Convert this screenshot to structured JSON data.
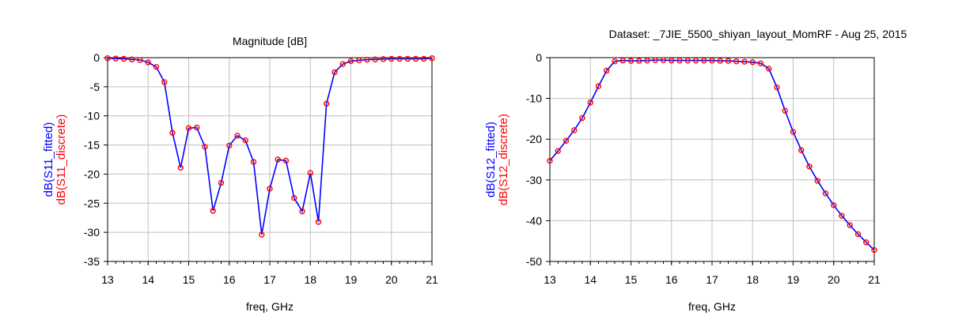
{
  "dataset_title": "Dataset: _7JIE_5500_shiyan_layout_MomRF - Aug 25, 2015",
  "colors": {
    "fitted": "#0000ff",
    "discrete": "#ff0000",
    "grid": "#c0c0c0",
    "frame": "#000000"
  },
  "chart_data": [
    {
      "type": "line",
      "title": "Magnitude [dB]",
      "xlabel": "freq, GHz",
      "ylabel_fitted": "dB(S11_fitted)",
      "ylabel_discrete": "dB(S11_discrete)",
      "xlim": [
        13,
        21
      ],
      "ylim": [
        -35,
        0
      ],
      "xticks": [
        "13",
        "14",
        "15",
        "16",
        "17",
        "18",
        "19",
        "20",
        "21"
      ],
      "yticks": [
        "0",
        "-5",
        "-10",
        "-15",
        "-20",
        "-25",
        "-30",
        "-35"
      ],
      "grid": true,
      "x": [
        13.0,
        13.2,
        13.4,
        13.6,
        13.8,
        14.0,
        14.2,
        14.4,
        14.6,
        14.8,
        15.0,
        15.2,
        15.4,
        15.6,
        15.8,
        16.0,
        16.2,
        16.4,
        16.6,
        16.8,
        17.0,
        17.2,
        17.4,
        17.6,
        17.8,
        18.0,
        18.2,
        18.4,
        18.6,
        18.8,
        19.0,
        19.2,
        19.4,
        19.6,
        19.8,
        20.0,
        20.2,
        20.4,
        20.6,
        20.8,
        21.0
      ],
      "series": [
        {
          "name": "dB(S11_fitted)",
          "values": [
            -0.1,
            -0.15,
            -0.2,
            -0.3,
            -0.4,
            -0.8,
            -1.6,
            -4.2,
            -12.9,
            -18.9,
            -12.1,
            -12.0,
            -15.3,
            -26.3,
            -21.5,
            -15.1,
            -13.4,
            -14.2,
            -17.9,
            -30.4,
            -22.5,
            -17.5,
            -17.7,
            -24.1,
            -26.4,
            -19.8,
            -28.2,
            -7.9,
            -2.5,
            -1.1,
            -0.6,
            -0.45,
            -0.35,
            -0.3,
            -0.25,
            -0.2,
            -0.2,
            -0.2,
            -0.2,
            -0.2,
            -0.1
          ]
        },
        {
          "name": "dB(S11_discrete)",
          "values": [
            -0.1,
            -0.15,
            -0.2,
            -0.3,
            -0.4,
            -0.8,
            -1.6,
            -4.2,
            -12.9,
            -18.9,
            -12.1,
            -12.0,
            -15.3,
            -26.3,
            -21.5,
            -15.1,
            -13.4,
            -14.2,
            -17.9,
            -30.4,
            -22.5,
            -17.5,
            -17.7,
            -24.1,
            -26.4,
            -19.8,
            -28.2,
            -7.9,
            -2.5,
            -1.1,
            -0.6,
            -0.45,
            -0.35,
            -0.3,
            -0.25,
            -0.2,
            -0.2,
            -0.2,
            -0.2,
            -0.2,
            -0.1
          ]
        }
      ]
    },
    {
      "type": "line",
      "title": "",
      "xlabel": "freq, GHz",
      "ylabel_fitted": "dB(S12_fitted)",
      "ylabel_discrete": "dB(S12_discrete)",
      "xlim": [
        13,
        21
      ],
      "ylim": [
        -50,
        0
      ],
      "xticks": [
        "13",
        "14",
        "15",
        "16",
        "17",
        "18",
        "19",
        "20",
        "21"
      ],
      "yticks": [
        "0",
        "-10",
        "-20",
        "-30",
        "-40",
        "-50"
      ],
      "grid": true,
      "x": [
        13.0,
        13.2,
        13.4,
        13.6,
        13.8,
        14.0,
        14.2,
        14.4,
        14.6,
        14.8,
        15.0,
        15.2,
        15.4,
        15.6,
        15.8,
        16.0,
        16.2,
        16.4,
        16.6,
        16.8,
        17.0,
        17.2,
        17.4,
        17.6,
        17.8,
        18.0,
        18.2,
        18.4,
        18.6,
        18.8,
        19.0,
        19.2,
        19.4,
        19.6,
        19.8,
        20.0,
        20.2,
        20.4,
        20.6,
        20.8,
        21.0
      ],
      "series": [
        {
          "name": "dB(S12_fitted)",
          "values": [
            -25.3,
            -22.9,
            -20.4,
            -17.8,
            -14.8,
            -11.0,
            -7.0,
            -3.2,
            -0.9,
            -0.7,
            -0.8,
            -0.8,
            -0.7,
            -0.6,
            -0.6,
            -0.7,
            -0.7,
            -0.7,
            -0.7,
            -0.7,
            -0.7,
            -0.8,
            -0.8,
            -0.9,
            -1.0,
            -1.1,
            -1.4,
            -2.7,
            -7.3,
            -13.0,
            -18.2,
            -22.7,
            -26.7,
            -30.2,
            -33.3,
            -36.2,
            -38.8,
            -41.1,
            -43.3,
            -45.3,
            -47.2
          ]
        },
        {
          "name": "dB(S12_discrete)",
          "values": [
            -25.3,
            -22.9,
            -20.4,
            -17.8,
            -14.8,
            -11.0,
            -7.0,
            -3.2,
            -0.9,
            -0.7,
            -0.8,
            -0.8,
            -0.7,
            -0.6,
            -0.6,
            -0.7,
            -0.7,
            -0.7,
            -0.7,
            -0.7,
            -0.7,
            -0.8,
            -0.8,
            -0.9,
            -1.0,
            -1.1,
            -1.4,
            -2.7,
            -7.3,
            -13.0,
            -18.2,
            -22.7,
            -26.7,
            -30.2,
            -33.3,
            -36.2,
            -38.8,
            -41.1,
            -43.3,
            -45.3,
            -47.2
          ]
        }
      ]
    }
  ]
}
